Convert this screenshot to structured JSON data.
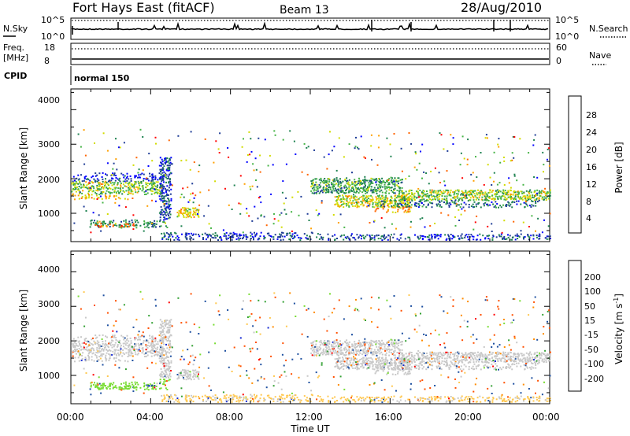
{
  "header": {
    "station": "Fort Hays East (fitACF)",
    "beam": "Beam 13",
    "date": "28/Aug/2010"
  },
  "noise_panel": {
    "left_label": "N.Sky",
    "right_label": "N.Search",
    "left_ticks": [
      "10^5",
      "10^0"
    ],
    "right_ticks": [
      "10^5",
      "10^0"
    ]
  },
  "freq_panel": {
    "left_label_top": "Freq.",
    "left_label_bottom": "[MHz]",
    "right_label": "Nave",
    "left_ticks": [
      "18",
      "8"
    ],
    "right_ticks": [
      "60",
      "0"
    ]
  },
  "cpid": {
    "label": "CPID",
    "value": "normal 150"
  },
  "power_panel": {
    "ylabel": "Slant Range [km]",
    "yticks": [
      "4000",
      "3000",
      "2000",
      "1000"
    ],
    "colorbar_label": "Power [dB]",
    "colorbar_ticks": [
      "28",
      "24",
      "20",
      "16",
      "12",
      "8",
      "4"
    ],
    "colors": [
      "#0000ff",
      "#1e3c96",
      "#1e8250",
      "#46b446",
      "#d2dc00",
      "#ffa000",
      "#ff6400",
      "#ff0000"
    ]
  },
  "velocity_panel": {
    "ylabel": "Slant Range [km]",
    "yticks": [
      "4000",
      "3000",
      "2000",
      "1000"
    ],
    "colorbar_label_main": "Velocity [m s",
    "colorbar_label_sup": "-1",
    "colorbar_label_end": "]",
    "colorbar_ticks": [
      "200",
      "100",
      "50",
      "15",
      "-15",
      "-50",
      "-100",
      "-200"
    ],
    "colors": [
      "#1428d2",
      "#1e50a0",
      "#32a032",
      "#78dc32",
      "#c8c8c8",
      "#ffc850",
      "#ff8c00",
      "#ff5000",
      "#ff0000"
    ]
  },
  "xaxis": {
    "label": "Time UT",
    "ticks": [
      "00:00",
      "04:00",
      "08:00",
      "12:00",
      "16:00",
      "20:00",
      "00:00"
    ]
  },
  "chart_data": {
    "type": "heatmap",
    "x_range_hours": [
      0,
      24
    ],
    "y_range_km": [
      180,
      4600
    ],
    "layers": [
      {
        "t0": 0,
        "t1": 4.6,
        "r0": 1520,
        "r1": 1900,
        "v": 16
      },
      {
        "t0": 0,
        "t1": 4.6,
        "r0": 1900,
        "r1": 2150,
        "v": 4
      },
      {
        "t0": 0,
        "t1": 3.0,
        "r0": 1380,
        "r1": 1520,
        "v": 22
      },
      {
        "t0": 0.9,
        "t1": 4.9,
        "r0": 560,
        "r1": 780,
        "v": 10
      },
      {
        "t0": 1.2,
        "t1": 3.2,
        "r0": 560,
        "r1": 700,
        "v": 24
      },
      {
        "t0": 4.4,
        "t1": 5.0,
        "r0": 780,
        "r1": 2600,
        "v": 6
      },
      {
        "t0": 5.3,
        "t1": 6.4,
        "r0": 850,
        "r1": 1150,
        "v": 20
      },
      {
        "t0": 4.5,
        "t1": 12.6,
        "r0": 200,
        "r1": 420,
        "v": 6
      },
      {
        "t0": 12.0,
        "t1": 16.6,
        "r0": 1550,
        "r1": 2000,
        "v": 12
      },
      {
        "t0": 13.2,
        "t1": 17.0,
        "r0": 1150,
        "r1": 1500,
        "v": 18
      },
      {
        "t0": 15.2,
        "t1": 17.2,
        "r0": 1000,
        "r1": 1200,
        "v": 22
      },
      {
        "t0": 16.4,
        "t1": 24.0,
        "r0": 1350,
        "r1": 1650,
        "v": 16
      },
      {
        "t0": 15.5,
        "t1": 23.5,
        "r0": 1150,
        "r1": 1350,
        "v": 8
      },
      {
        "t0": 12.4,
        "t1": 24.0,
        "r0": 200,
        "r1": 380,
        "v": 6
      }
    ]
  }
}
